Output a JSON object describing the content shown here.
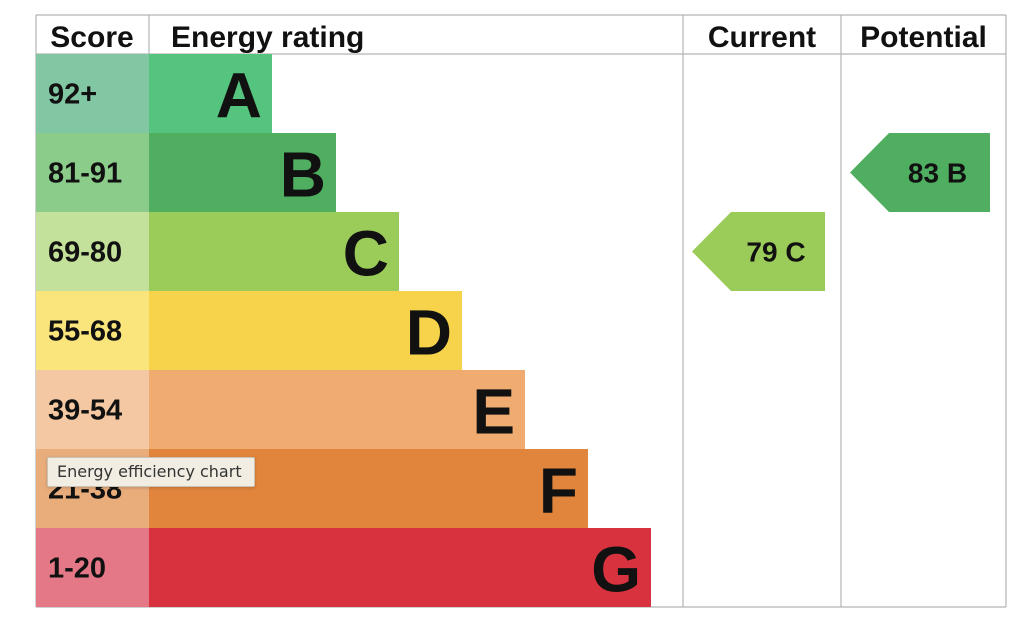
{
  "chart_data": {
    "type": "bar",
    "headers": {
      "score": "Score",
      "energy_rating": "Energy rating",
      "current": "Current",
      "potential": "Potential"
    },
    "bands": [
      {
        "score": "92+",
        "letter": "A",
        "band_color": "#55c47e",
        "score_color": "#82c7a4"
      },
      {
        "score": "81-91",
        "letter": "B",
        "band_color": "#4fae60",
        "score_color": "#8ccc8a"
      },
      {
        "score": "69-80",
        "letter": "C",
        "band_color": "#9bcb58",
        "score_color": "#c3e19a"
      },
      {
        "score": "55-68",
        "letter": "D",
        "band_color": "#f6d34a",
        "score_color": "#fae57d"
      },
      {
        "score": "39-54",
        "letter": "E",
        "band_color": "#efab70",
        "score_color": "#f4c8a2"
      },
      {
        "score": "21-38",
        "letter": "F",
        "band_color": "#e1853d",
        "score_color": "#e9ad7c"
      },
      {
        "score": "1-20",
        "letter": "G",
        "band_color": "#d8323f",
        "score_color": "#e57886"
      }
    ],
    "current": {
      "value": 79,
      "rating": "C",
      "label": "79  C",
      "color": "#9bcb58"
    },
    "potential": {
      "value": 83,
      "rating": "B",
      "label": "83  B",
      "color": "#4fae60"
    }
  },
  "tooltip": {
    "text": "Energy efficiency chart"
  }
}
